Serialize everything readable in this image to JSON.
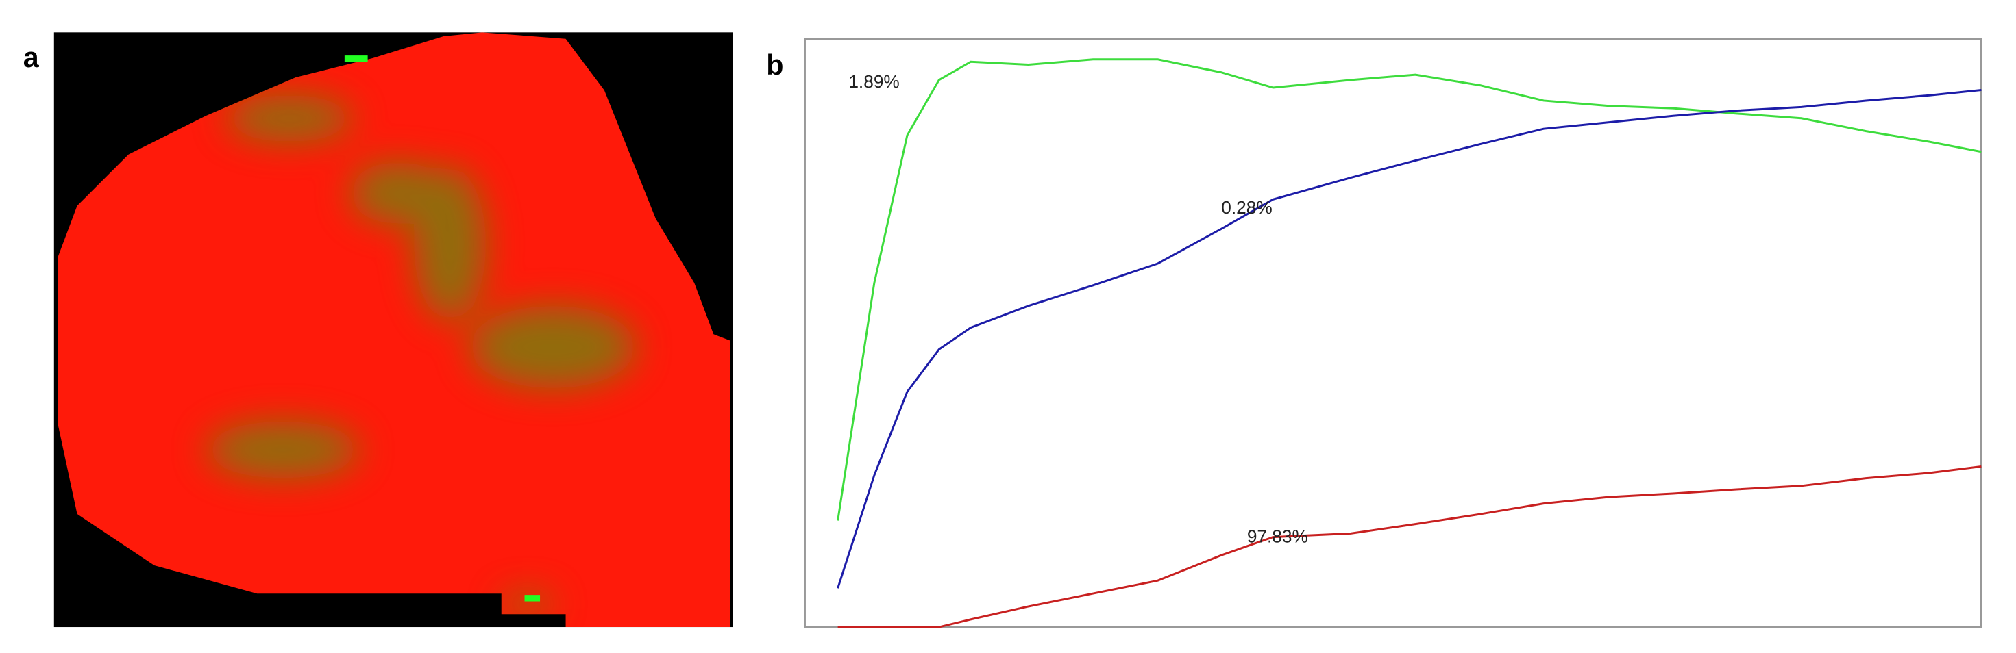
{
  "panels": [
    {
      "label": "a"
    },
    {
      "label": "b"
    }
  ],
  "chart_data": {
    "type": "line",
    "xlim": [
      0,
      100
    ],
    "ylim": [
      0,
      100
    ],
    "x": [
      2.8,
      5.9,
      8.7,
      11.4,
      14.1,
      19.0,
      24.5,
      30.0,
      35.4,
      39.8,
      46.4,
      51.9,
      57.4,
      62.8,
      68.3,
      73.8,
      79.2,
      84.7,
      90.2,
      95.6,
      100
    ],
    "series": [
      {
        "name": "1.89%",
        "color": "#3ddc3d",
        "values": [
          18.1,
          58.5,
          83.6,
          93.0,
          96.1,
          95.6,
          96.5,
          96.5,
          94.3,
          91.7,
          93.0,
          93.9,
          92.1,
          89.5,
          88.6,
          88.2,
          87.3,
          86.5,
          84.3,
          82.5,
          80.8
        ]
      },
      {
        "name": "0.28%",
        "color": "#1c1ca8",
        "values": [
          6.6,
          25.8,
          40.0,
          47.2,
          50.9,
          54.6,
          58.1,
          61.8,
          67.7,
          72.7,
          76.4,
          79.3,
          82.1,
          84.7,
          85.8,
          86.9,
          87.8,
          88.4,
          89.5,
          90.4,
          91.3
        ]
      },
      {
        "name": "97.83%",
        "color": "#c82020",
        "values": [
          0,
          0,
          0,
          0,
          1.3,
          3.5,
          5.7,
          7.9,
          12.2,
          15.3,
          15.9,
          17.5,
          19.2,
          21.0,
          22.1,
          22.7,
          23.4,
          24.0,
          25.3,
          26.2,
          27.3
        ]
      }
    ]
  }
}
